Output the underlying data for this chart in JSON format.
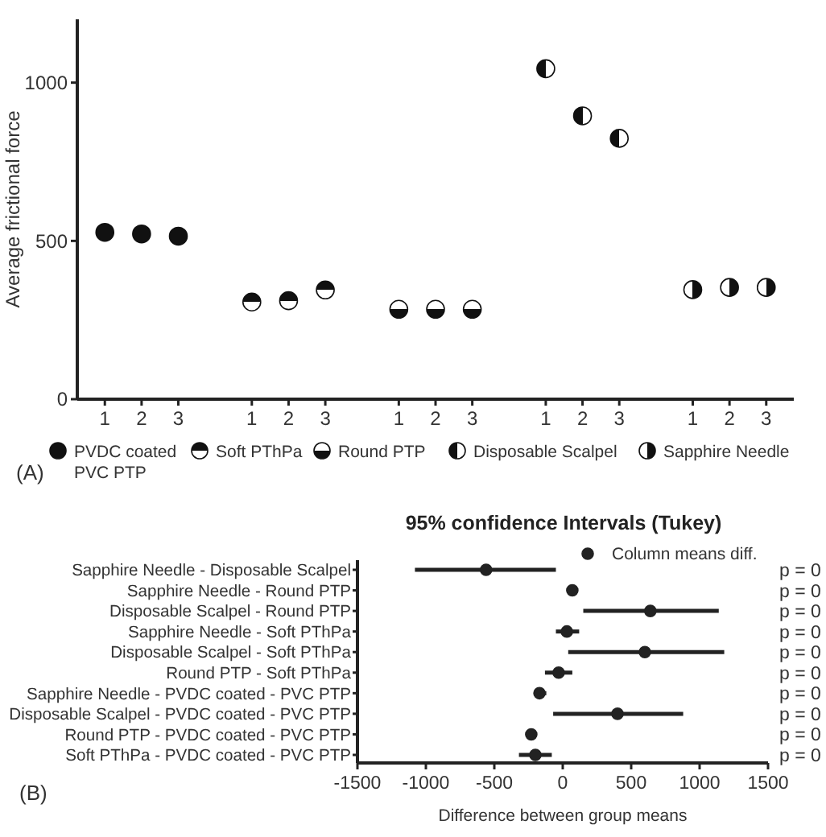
{
  "chart_data": [
    {
      "type": "scatter",
      "ylabel": "Average frictional force",
      "categories": [
        "1",
        "2",
        "3",
        null,
        "1",
        "2",
        "3",
        null,
        "1",
        "2",
        "3",
        null,
        "1",
        "2",
        "3",
        null,
        "1",
        "2",
        "3"
      ],
      "ylim": [
        0,
        1200
      ],
      "yticks": [
        0,
        500,
        1000
      ],
      "marker": "circle",
      "legend": "bottom",
      "annotations": [
        "(A)"
      ],
      "series": [
        {
          "name": "PVDC coated PVC PTP",
          "color": "#111111",
          "values": [
            527,
            522,
            515,
            null,
            null,
            null,
            null,
            null,
            null,
            null,
            null,
            null,
            null,
            null,
            null,
            null,
            null,
            null,
            null
          ]
        },
        {
          "name": "Soft PThPa",
          "color": "#111111",
          "values": [
            null,
            null,
            null,
            null,
            307,
            311,
            345,
            null,
            null,
            null,
            null,
            null,
            null,
            null,
            null,
            null,
            null,
            null,
            null
          ]
        },
        {
          "name": "Round PTP",
          "color": "#111111",
          "values": [
            null,
            null,
            null,
            null,
            null,
            null,
            null,
            null,
            284,
            284,
            284,
            null,
            null,
            null,
            null,
            null,
            null,
            null,
            null
          ]
        },
        {
          "name": "Disposable Scalpel",
          "color": "#111111",
          "values": [
            null,
            null,
            null,
            null,
            null,
            null,
            null,
            null,
            null,
            null,
            null,
            null,
            1044,
            895,
            824,
            null,
            null,
            null,
            null
          ]
        },
        {
          "name": "Sapphire Needle",
          "color": "#111111",
          "values": [
            null,
            null,
            null,
            null,
            null,
            null,
            null,
            null,
            null,
            null,
            null,
            null,
            null,
            null,
            null,
            null,
            346,
            353,
            353
          ]
        }
      ]
    },
    {
      "type": "scatter",
      "orientation": "horizontal",
      "title": "95% confidence Intervals (Tukey)",
      "xlabel": "Difference between group means",
      "categories": [
        "Sapphire Needle - Disposable Scalpel",
        "Sapphire Needle - Round PTP",
        "Disposable Scalpel - Round PTP",
        "Sapphire Needle - Soft PThPa",
        "Disposable Scalpel - Soft PThPa",
        "Round PTP - Soft PThPa",
        "Sapphire Needle - PVDC coated - PVC PTP",
        "Disposable Scalpel - PVDC coated - PVC PTP",
        "Round PTP - PVDC coated - PVC PTP",
        "Soft PThPa - PVDC coated - PVC PTP"
      ],
      "xlim": [
        -1500,
        1500
      ],
      "xticks": [
        -1500,
        -1000,
        -500,
        0,
        500,
        1000,
        1500
      ],
      "marker": "circle",
      "legend": "top right",
      "series": [
        {
          "name": "Column means diff.",
          "color": "#222222",
          "values": [
            -560,
            70,
            640,
            30,
            600,
            -30,
            -170,
            400,
            -230,
            -200
          ],
          "errors": [
            [
              -1080,
              -50
            ],
            [
              50,
              90
            ],
            [
              150,
              1140
            ],
            [
              -50,
              120
            ],
            [
              40,
              1180
            ],
            [
              -130,
              70
            ],
            [
              -210,
              -120
            ],
            [
              -70,
              880
            ],
            [
              -260,
              -210
            ],
            [
              -320,
              -80
            ]
          ]
        }
      ],
      "annotations": [
        "p = 0",
        "p = 0",
        "p = 0",
        "p = 0",
        "p = 0",
        "p = 0",
        "p = 0",
        "p = 0",
        "p = 0",
        "p = 0",
        "(B)"
      ]
    }
  ]
}
